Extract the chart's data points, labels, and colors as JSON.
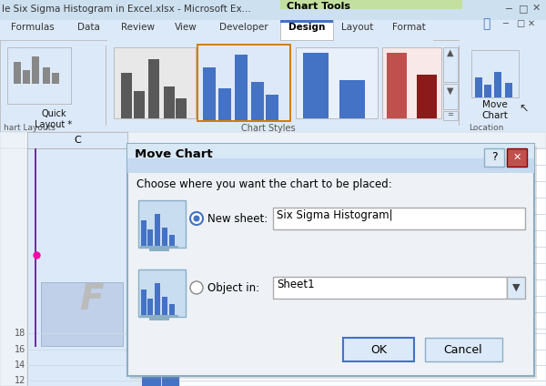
{
  "title_bar_text": "le Six Sigma Histogram in Excel.xlsx - Microsoft Ex...",
  "chart_tools_text": "Chart Tools",
  "tab_labels": [
    "Formulas",
    "Data",
    "Review",
    "View",
    "Developer",
    "Design",
    "Layout",
    "Format"
  ],
  "active_tab": "Design",
  "quick_layout_label": "Quick\nLayout *",
  "move_chart_label": "Move\nChart",
  "dialog_title": "Move Chart",
  "dialog_body": "Choose where you want the chart to be placed:",
  "new_sheet_label": "New sheet:",
  "new_sheet_value": "Six Sigma Histogram",
  "object_in_label": "Object in:",
  "object_in_value": "Sheet1",
  "ok_button": "OK",
  "cancel_button": "Cancel",
  "col_c_label": "C",
  "y_ticks": [
    "18",
    "16",
    "14",
    "12"
  ],
  "bg_color_titlebar": "#cde0f0",
  "bg_color_ribbon": "#dce9f8",
  "bg_color_excel_header": "#e8f0f8",
  "bg_color_sheet": "#ffffff",
  "bg_color_dialog": "#eef2f7",
  "bg_color_dialog_title": "#bed3ea",
  "active_tab_bg": "#ffffff",
  "dialog_border_color": "#8aafc5",
  "chart_bar_blue": "#4472c4",
  "chart_bar_gray": "#595959",
  "chart_bar_red1": "#c0504d",
  "chart_bar_red2": "#8b1a1a",
  "orange_border": "#d08000",
  "fig_w": 6.0,
  "fig_h": 4.24
}
